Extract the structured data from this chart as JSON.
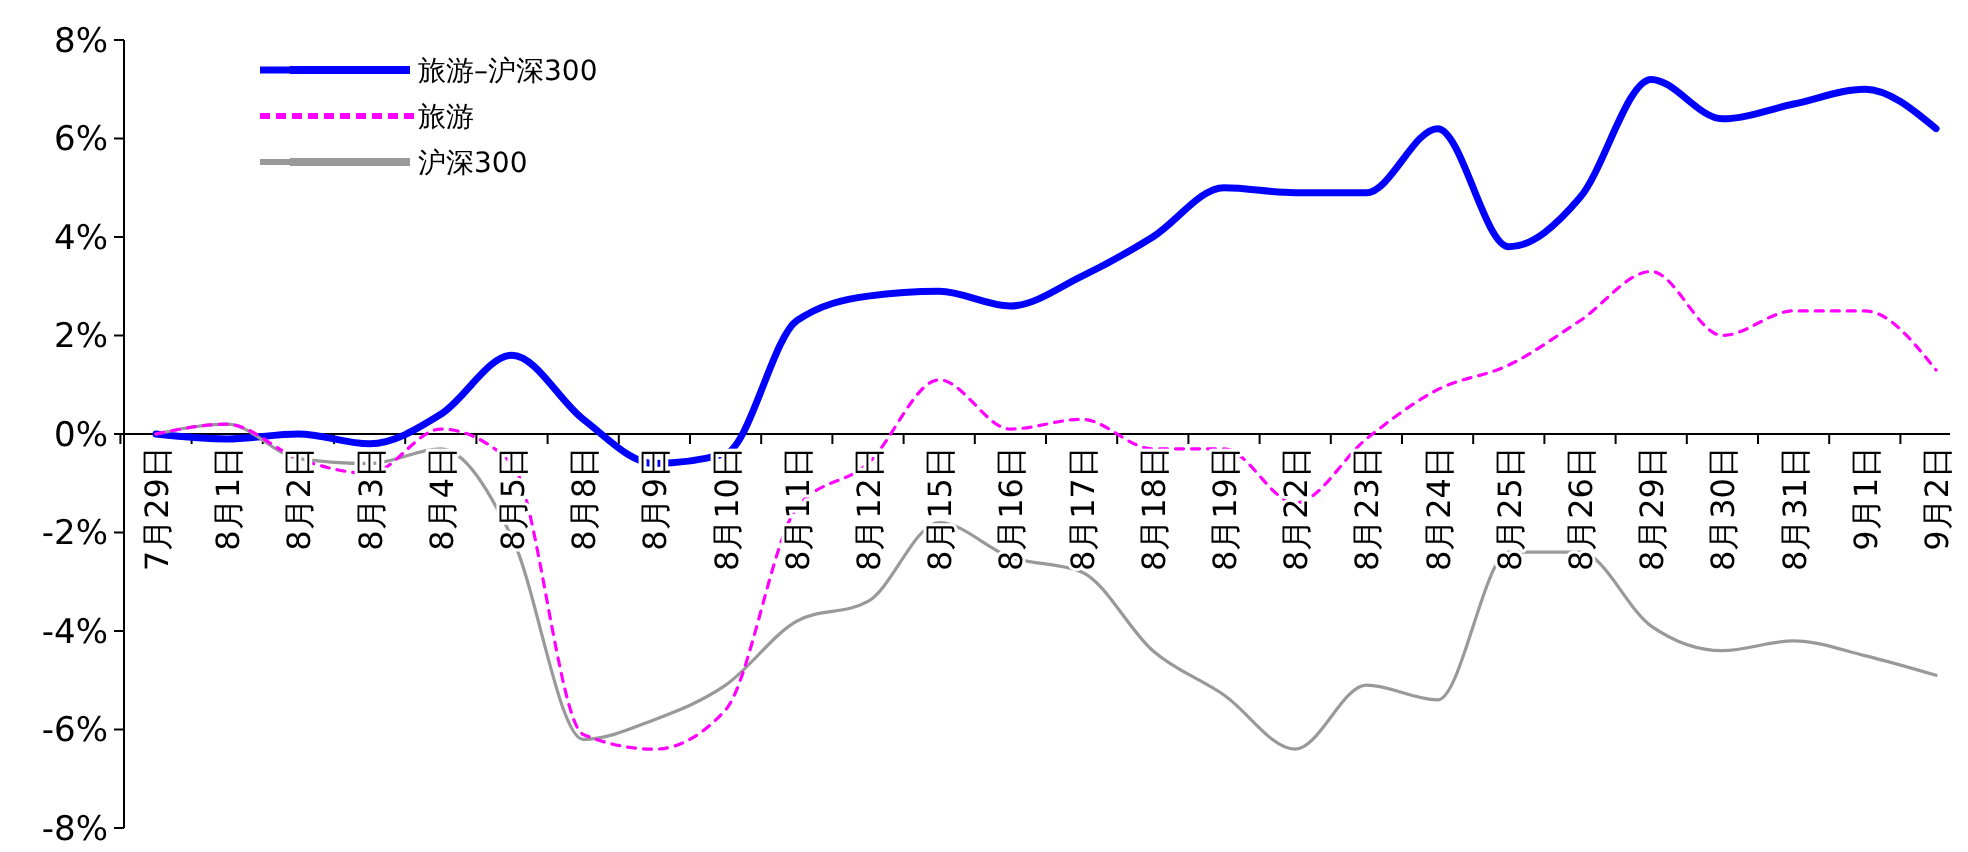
{
  "chart_data": {
    "type": "line",
    "categories": [
      "7月29日",
      "8月1日",
      "8月2日",
      "8月3日",
      "8月4日",
      "8月5日",
      "8月8日",
      "8月9日",
      "8月10日",
      "8月11日",
      "8月12日",
      "8月15日",
      "8月16日",
      "8月17日",
      "8月18日",
      "8月19日",
      "8月22日",
      "8月23日",
      "8月24日",
      "8月25日",
      "8月26日",
      "8月29日",
      "8月30日",
      "8月31日",
      "9月1日",
      "9月2日"
    ],
    "series": [
      {
        "name": "旅游–沪深300",
        "color": "#0000ff",
        "line_style": "solid",
        "values": [
          0.0,
          -0.1,
          0.0,
          -0.2,
          0.4,
          1.6,
          0.3,
          -0.6,
          -0.4,
          2.3,
          2.8,
          2.9,
          2.6,
          3.2,
          4.0,
          5.0,
          4.9,
          4.9,
          6.2,
          3.8,
          4.8,
          7.2,
          6.4,
          6.7,
          7.0,
          6.2
        ]
      },
      {
        "name": "旅游",
        "color": "#ff00ff",
        "line_style": "dashed",
        "values": [
          0.0,
          0.2,
          -0.5,
          -0.8,
          0.1,
          -0.6,
          -6.1,
          -6.4,
          -5.6,
          -1.5,
          -0.6,
          1.1,
          0.1,
          0.3,
          -0.3,
          -0.3,
          -1.4,
          -0.1,
          0.9,
          1.4,
          2.3,
          3.3,
          2.0,
          2.5,
          2.5,
          1.3
        ]
      },
      {
        "name": "沪深300",
        "color": "#999999",
        "line_style": "solid",
        "values": [
          0.0,
          0.2,
          -0.5,
          -0.6,
          -0.3,
          -2.1,
          -6.2,
          -5.8,
          -5.1,
          -3.8,
          -3.4,
          -1.8,
          -2.5,
          -2.8,
          -4.4,
          -5.3,
          -6.4,
          -5.1,
          -5.4,
          -2.4,
          -2.4,
          -3.9,
          -4.4,
          -4.2,
          -4.5,
          -4.9
        ]
      }
    ],
    "ylim": [
      -8,
      8
    ],
    "yticks": [
      {
        "value": -8,
        "label": "-8%"
      },
      {
        "value": -6,
        "label": "-6%"
      },
      {
        "value": -4,
        "label": "-4%"
      },
      {
        "value": -2,
        "label": "-2%"
      },
      {
        "value": 0,
        "label": "0%"
      },
      {
        "value": 2,
        "label": "2%"
      },
      {
        "value": 4,
        "label": "4%"
      },
      {
        "value": 6,
        "label": "6%"
      },
      {
        "value": 8,
        "label": "8%"
      }
    ],
    "grid": false,
    "legend": "top left",
    "marker": "none"
  }
}
